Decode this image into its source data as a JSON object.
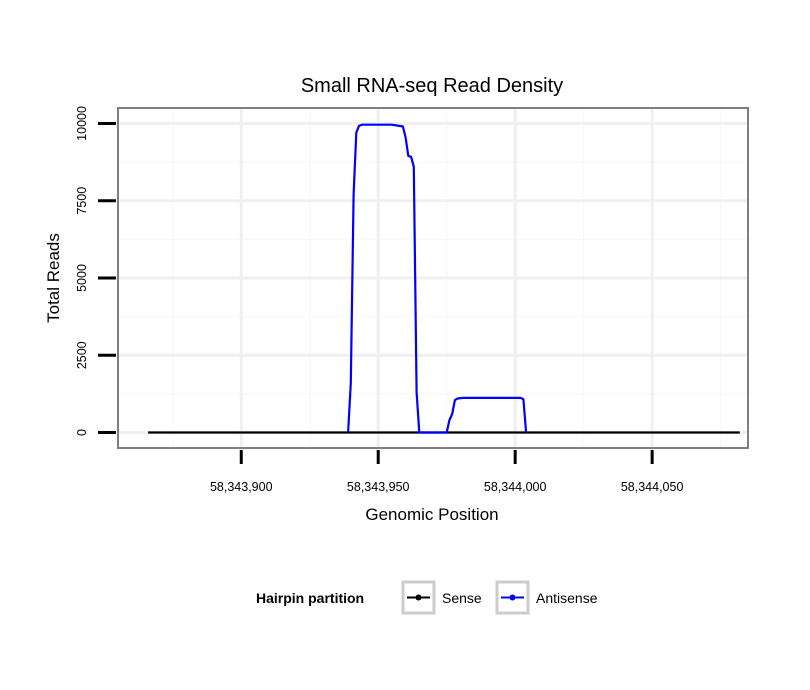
{
  "chart_data": {
    "type": "line",
    "title": "Small RNA-seq Read Density",
    "xlabel": "Genomic Position",
    "ylabel": "Total Reads",
    "xlim": [
      58343855,
      58344085
    ],
    "ylim": [
      -500,
      10500
    ],
    "x_ticks": [
      58343900,
      58343950,
      58344000,
      58344050
    ],
    "x_tick_labels": [
      "58,343,900",
      "58,343,950",
      "58,344,000",
      "58,344,050"
    ],
    "y_ticks": [
      0,
      2500,
      5000,
      7500,
      10000
    ],
    "y_tick_labels": [
      "0",
      "2500",
      "5000",
      "7500",
      "10000"
    ],
    "grid": true,
    "legend": {
      "title": "Hairpin partition",
      "position": "bottom",
      "entries": [
        "Sense",
        "Antisense"
      ]
    },
    "series": [
      {
        "name": "Sense",
        "color": "#000000",
        "x": [
          58343866,
          58344082
        ],
        "y": [
          0,
          0
        ]
      },
      {
        "name": "Antisense",
        "color": "#0000ff",
        "x": [
          58343939,
          58343940,
          58343941,
          58343942,
          58343943,
          58343944,
          58343946,
          58343955,
          58343959,
          58343960,
          58343961,
          58343962,
          58343963,
          58343964,
          58343965,
          58343966,
          58343975,
          58343976,
          58343977,
          58343978,
          58343979,
          58343981,
          58343984,
          58344002,
          58344003,
          58344004
        ],
        "y": [
          0,
          1600,
          7700,
          9700,
          9920,
          9960,
          9960,
          9960,
          9900,
          9550,
          8950,
          8920,
          8600,
          1300,
          0,
          0,
          0,
          400,
          600,
          1050,
          1100,
          1120,
          1120,
          1120,
          1080,
          0
        ]
      }
    ]
  }
}
